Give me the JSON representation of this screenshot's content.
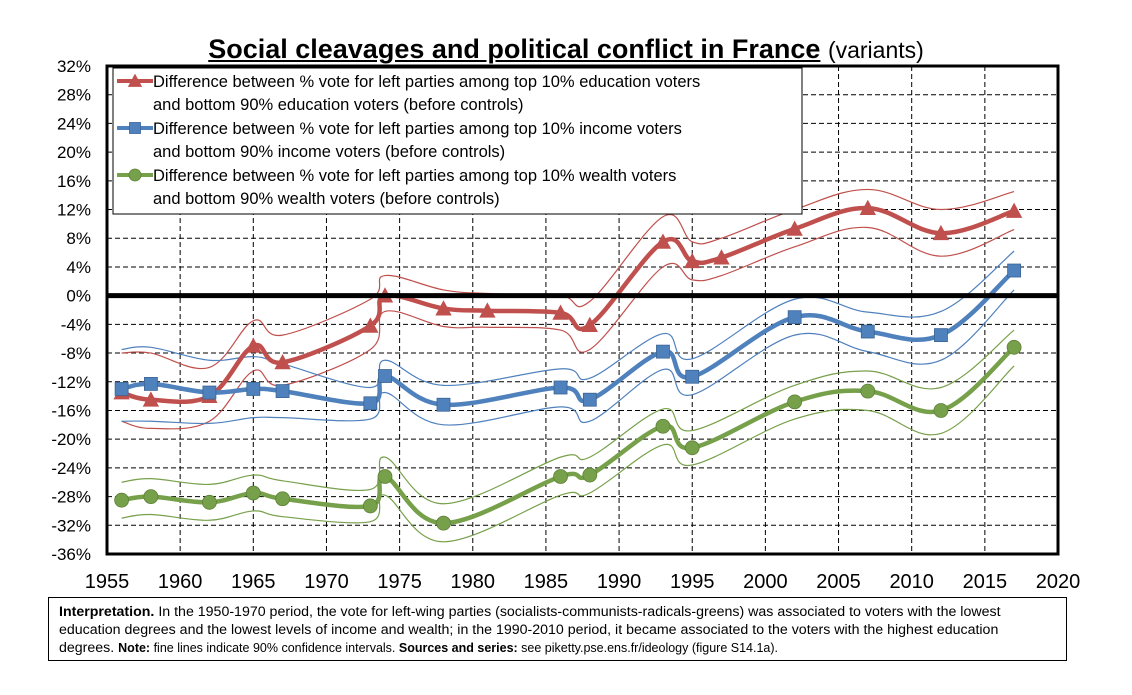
{
  "title": {
    "main": "Social cleavages and political conflict in France",
    "sub": "(variants)"
  },
  "chart_data": {
    "type": "line",
    "xlim": [
      1955,
      2020
    ],
    "ylim": [
      -36,
      32
    ],
    "x_ticks": [
      1955,
      1960,
      1965,
      1970,
      1975,
      1980,
      1985,
      1990,
      1995,
      2000,
      2005,
      2010,
      2015,
      2020
    ],
    "y_ticks": [
      32,
      28,
      24,
      20,
      16,
      12,
      8,
      4,
      0,
      -4,
      -8,
      -12,
      -16,
      -20,
      -24,
      -28,
      -32,
      -36
    ],
    "y_tick_labels": [
      "32%",
      "28%",
      "24%",
      "20%",
      "16%",
      "12%",
      "8%",
      "4%",
      "0%",
      "-4%",
      "-8%",
      "-12%",
      "-16%",
      "-20%",
      "-24%",
      "-28%",
      "-32%",
      "-36%"
    ],
    "grid": true,
    "zero_line": true,
    "legend_position": "top-left",
    "series": [
      {
        "key": "education",
        "name_line1": "Difference between % vote for left parties among top 10% education voters",
        "name_line2": "and bottom 90% education voters (before controls)",
        "color": "#c0504d",
        "marker": "triangle",
        "x": [
          1956,
          1958,
          1962,
          1965,
          1967,
          1973,
          1974,
          1978,
          1981,
          1986,
          1988,
          1993,
          1995,
          1997,
          2002,
          2007,
          2012,
          2017
        ],
        "y": [
          -13.5,
          -14.5,
          -14,
          -7,
          -9.3,
          -4.2,
          0,
          -1.8,
          -2.1,
          -2.4,
          -4.1,
          7.5,
          4.8,
          5.3,
          9.3,
          12.2,
          8.7,
          11.8
        ],
        "ci_upper": [
          -8,
          -8,
          -10,
          -3.5,
          -5.5,
          -0.5,
          2.8,
          0.8,
          0.3,
          0,
          -0.8,
          11,
          7.5,
          8,
          12,
          14.8,
          12,
          14.5
        ],
        "ci_lower": [
          -17.5,
          -18.5,
          -17.5,
          -10.5,
          -12.5,
          -7.5,
          -2.2,
          -4.3,
          -4.4,
          -4.8,
          -7.5,
          4,
          2.2,
          2.8,
          6.8,
          9.5,
          5.5,
          9.2
        ]
      },
      {
        "key": "income",
        "name_line1": "Difference between % vote for left parties among top 10% income voters",
        "name_line2": "and bottom 90% income voters (before controls)",
        "color": "#4f81bd",
        "marker": "square",
        "x": [
          1956,
          1958,
          1962,
          1965,
          1967,
          1973,
          1974,
          1978,
          1986,
          1988,
          1993,
          1995,
          2002,
          2007,
          2012,
          2017
        ],
        "y": [
          -13,
          -12.3,
          -13.5,
          -13,
          -13.3,
          -15,
          -11.2,
          -15.2,
          -12.8,
          -14.5,
          -7.8,
          -11.3,
          -3,
          -5,
          -5.5,
          3.5
        ],
        "ci_upper": [
          -7.5,
          -7.2,
          -9,
          -8.5,
          -9.5,
          -12.8,
          -9,
          -12.5,
          -10.2,
          -11.5,
          -5.3,
          -8.8,
          -0.5,
          -2.3,
          -2.2,
          6.2
        ],
        "ci_lower": [
          -17.5,
          -17.5,
          -17.8,
          -17,
          -17,
          -17.2,
          -13.5,
          -18,
          -15.5,
          -17.5,
          -10.3,
          -13.8,
          -5.5,
          -7.8,
          -9,
          0.8
        ]
      },
      {
        "key": "wealth",
        "name_line1": "Difference between % vote for left parties among top 10% wealth voters",
        "name_line2": "and bottom 90% wealth voters (before controls)",
        "color": "#77a04a",
        "marker": "circle",
        "x": [
          1956,
          1958,
          1962,
          1965,
          1967,
          1973,
          1974,
          1978,
          1986,
          1988,
          1993,
          1995,
          2002,
          2007,
          2012,
          2017
        ],
        "y": [
          -28.5,
          -28,
          -28.8,
          -27.5,
          -28.3,
          -29.3,
          -25.2,
          -31.7,
          -25.2,
          -25,
          -18.2,
          -21.2,
          -14.8,
          -13.3,
          -16,
          -7.2
        ],
        "ci_upper": [
          -26,
          -25.5,
          -26.3,
          -25,
          -25.8,
          -27,
          -22.5,
          -29,
          -22.5,
          -22.5,
          -15.8,
          -18.8,
          -12.5,
          -10.5,
          -12.8,
          -4.8
        ],
        "ci_lower": [
          -31,
          -30.5,
          -31.3,
          -30,
          -30.8,
          -31.5,
          -27.8,
          -34.3,
          -27.8,
          -27.5,
          -20.8,
          -23.6,
          -17.2,
          -16,
          -19.2,
          -9.8
        ]
      }
    ]
  },
  "note": {
    "interp_label": "Interpretation.",
    "interp_text": " In the 1950-1970 period, the vote for left-wing parties (socialists-communists-radicals-greens) was associated to voters with the lowest education degrees and the lowest levels of income and wealth; in the 1990-2010 period, it became associated to the voters with the highest education degrees. ",
    "note_label": "Note:",
    "note_text": " fine lines indicate 90% confidence intervals. ",
    "sources_label": "Sources and series:",
    "sources_text": " see piketty.pse.ens.fr/ideology (figure S14.1a)."
  }
}
